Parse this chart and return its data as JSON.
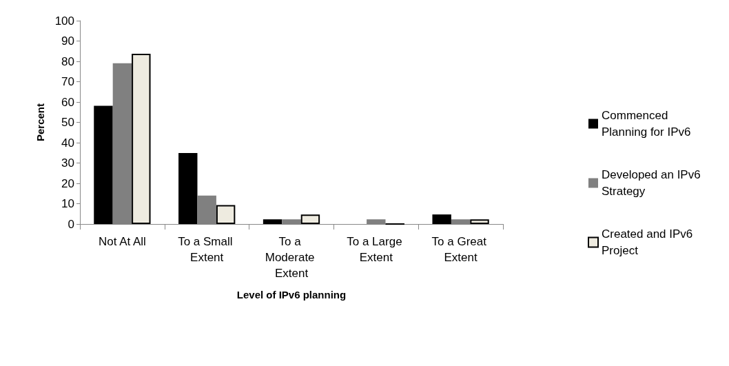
{
  "chart_data": {
    "type": "bar",
    "xlabel": "Level of IPv6 planning",
    "ylabel": "Percent",
    "categories": [
      "Not At All",
      "To a Small Extent",
      "To a Moderate Extent",
      "To a Large Extent",
      "To a Great Extent"
    ],
    "series": [
      {
        "name": "Commenced Planning for IPv6",
        "color": "#000000",
        "values": [
          58.1,
          34.9,
          2.3,
          0,
          4.7
        ]
      },
      {
        "name": "Developed an IPv6 Strategy",
        "color": "#808080",
        "values": [
          79.1,
          14.0,
          2.3,
          2.3,
          2.3
        ]
      },
      {
        "name": "Created and IPv6 Project",
        "color": "#eeebe0",
        "values": [
          83.7,
          9.3,
          4.7,
          0,
          2.3
        ]
      }
    ],
    "ylim": [
      0,
      100
    ],
    "yticks": [
      0,
      10,
      20,
      30,
      40,
      50,
      60,
      70,
      80,
      90,
      100
    ],
    "grid": false,
    "legend": "right"
  }
}
